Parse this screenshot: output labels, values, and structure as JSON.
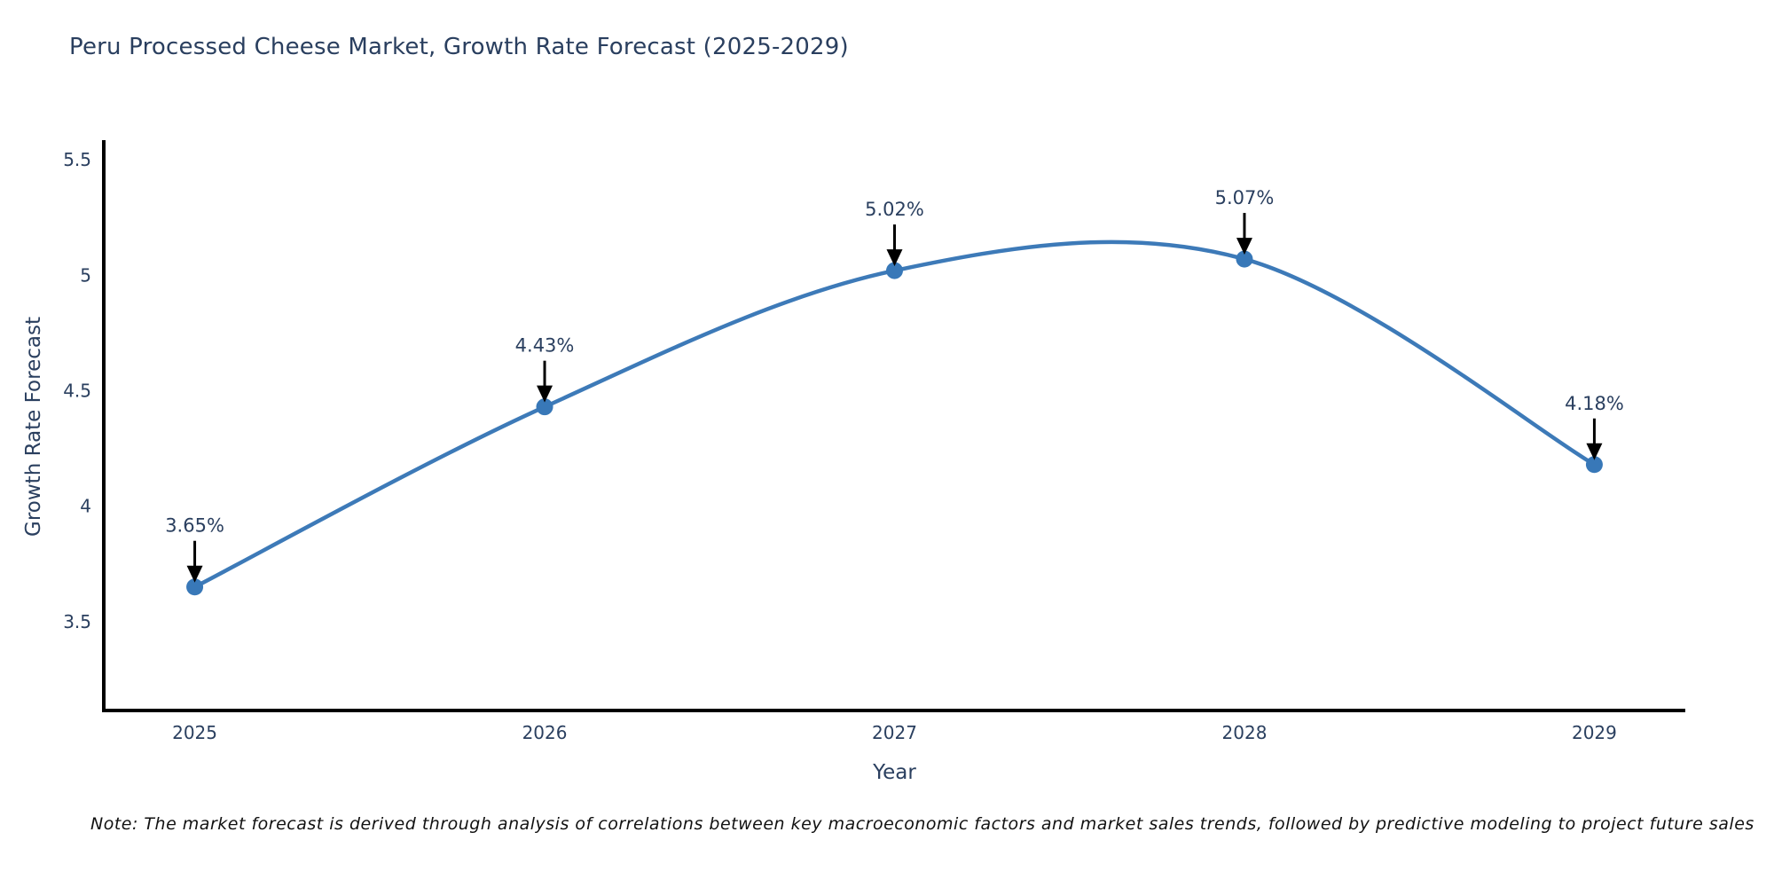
{
  "chart_data": {
    "type": "line",
    "title": "Peru Processed Cheese Market, Growth Rate Forecast (2025-2029)",
    "xlabel": "Year",
    "ylabel": "Growth Rate Forecast",
    "x": [
      2025,
      2026,
      2027,
      2028,
      2029
    ],
    "values": [
      3.65,
      4.43,
      5.02,
      5.07,
      4.18
    ],
    "point_labels": [
      "3.65%",
      "4.43%",
      "5.02%",
      "5.07%",
      "4.18%"
    ],
    "xticks": [
      "2025",
      "2026",
      "2027",
      "2028",
      "2029"
    ],
    "yticks": [
      "3.5",
      "4",
      "4.5",
      "5",
      "5.5"
    ],
    "xlim": [
      2024.74,
      2029.26
    ],
    "ylim": [
      3.115,
      5.585
    ],
    "grid": false,
    "legend": "none",
    "smooth": true,
    "line_color": "#3d7ab8",
    "marker_color": "#3878b8",
    "axis_line_color": "#000000",
    "annotation_arrow_color": "#000000",
    "annotation_text_color": "#2a3f5f",
    "tick_text_color": "#2a3f5f"
  },
  "note": {
    "text": "Note: The market forecast is derived through analysis of correlations between key macroeconomic factors and market sales trends, followed by predictive modeling to project future sales"
  },
  "colors": {
    "background": "#ffffff",
    "title_text": "#2a3f5f"
  }
}
